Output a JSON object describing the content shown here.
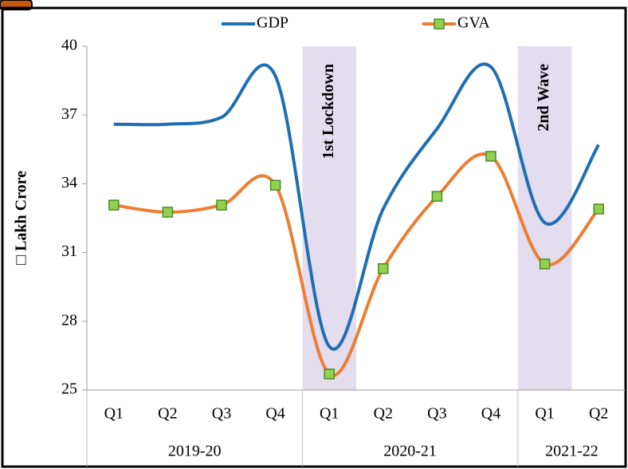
{
  "chart_data": {
    "type": "line",
    "y_label": "□ Lakh Crore",
    "categories": [
      "Q1",
      "Q2",
      "Q3",
      "Q4",
      "Q1",
      "Q2",
      "Q3",
      "Q4",
      "Q1",
      "Q2"
    ],
    "groups": [
      {
        "label": "2019-20",
        "count": 4
      },
      {
        "label": "2020-21",
        "count": 4
      },
      {
        "label": "2021-22",
        "count": 2
      }
    ],
    "series": [
      {
        "name": "GDP",
        "color": "#1f6eb4",
        "values": [
          36.6,
          36.6,
          36.9,
          38.7,
          26.9,
          32.9,
          36.4,
          39.1,
          32.3,
          35.7
        ]
      },
      {
        "name": "GVA",
        "color": "#ed7d31",
        "marker_color": "#92d050",
        "values": [
          33.07,
          32.76,
          33.07,
          33.94,
          25.7,
          30.3,
          33.45,
          35.2,
          30.5,
          32.9
        ]
      }
    ],
    "annotations": [
      {
        "text": "1st Lockdown",
        "index": 4
      },
      {
        "text": "2nd Wave",
        "index": 8
      }
    ],
    "band_color": "#e4dcef",
    "ylim": [
      25,
      40
    ],
    "yticks": [
      25,
      28,
      31,
      34,
      37,
      40
    ],
    "grid": false
  }
}
